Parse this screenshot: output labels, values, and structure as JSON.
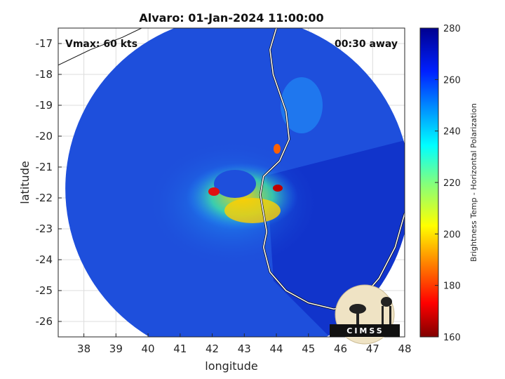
{
  "title": "Alvaro: 01-Jan-2024 11:00:00",
  "annotations": {
    "vmax": "Vmax: 60 kts",
    "away": "00:30 away"
  },
  "map": {
    "xlabel": "longitude",
    "ylabel": "latitude",
    "xlim": [
      37.2,
      48
    ],
    "ylim": [
      -26.5,
      -16.5
    ],
    "xticks": [
      "38",
      "39",
      "40",
      "41",
      "42",
      "43",
      "44",
      "45",
      "46",
      "47",
      "48"
    ],
    "yticks": [
      "-17",
      "-18",
      "-19",
      "-20",
      "-21",
      "-22",
      "-23",
      "-24",
      "-25",
      "-26"
    ],
    "xtick_values": [
      38,
      39,
      40,
      41,
      42,
      43,
      44,
      45,
      46,
      47,
      48
    ],
    "ytick_values": [
      -17,
      -18,
      -19,
      -20,
      -21,
      -22,
      -23,
      -24,
      -25,
      -26
    ],
    "grid": true,
    "swath_center": [
      42.8,
      -21.7
    ],
    "storm_center": [
      42.9,
      -21.9
    ],
    "background_color": "#1e4fdc",
    "coastline_color": "#ffffff"
  },
  "colorbar": {
    "label": "Brightness Temp - Horizontal Polarization",
    "min": 160,
    "max": 280,
    "ticks": [
      "280",
      "260",
      "240",
      "220",
      "200",
      "180",
      "160"
    ],
    "tick_values": [
      280,
      260,
      240,
      220,
      200,
      180,
      160
    ],
    "colormap": "jet"
  },
  "logo": {
    "text": "CIMSS"
  }
}
